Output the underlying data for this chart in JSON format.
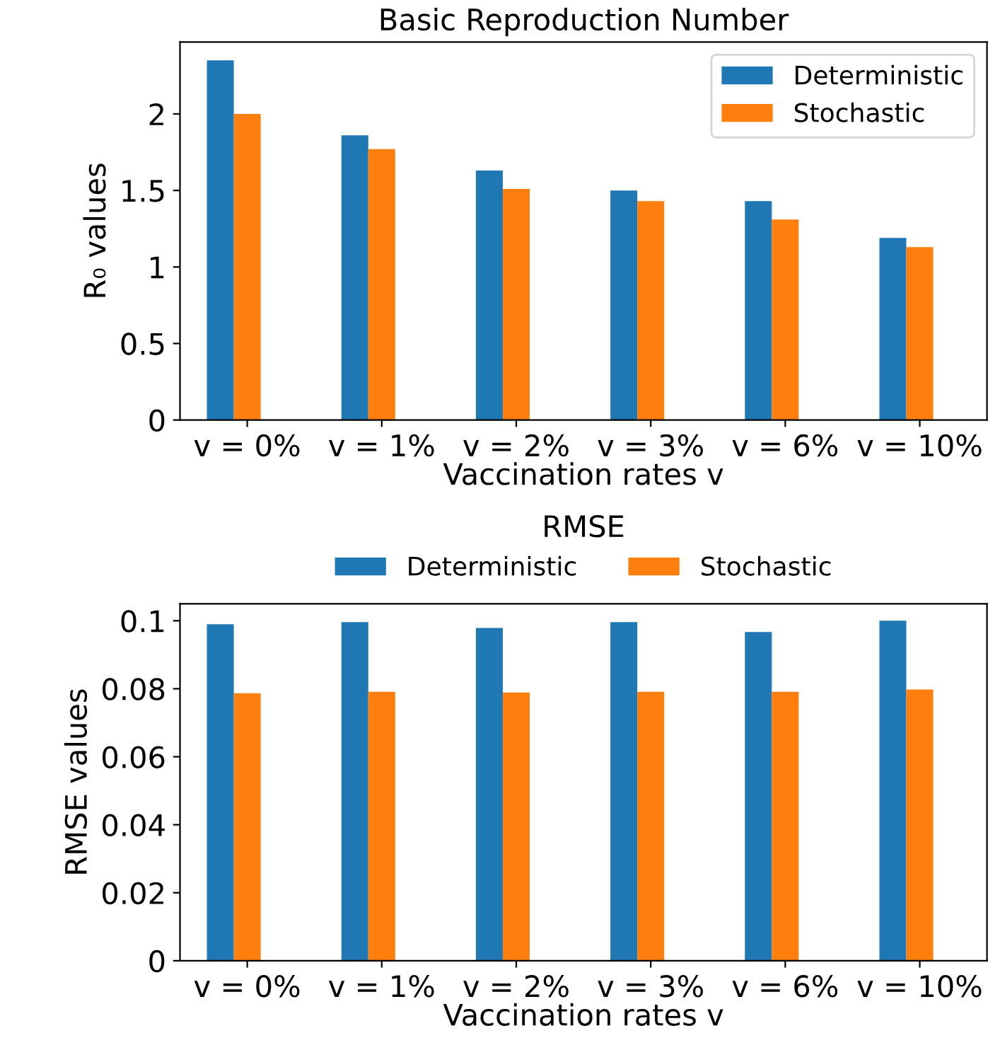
{
  "chart_data": [
    {
      "type": "bar",
      "title": "Basic Reproduction Number",
      "xlabel": "Vaccination rates v",
      "ylabel": "R₀ values",
      "categories": [
        "v = 0%",
        "v = 1%",
        "v = 2%",
        "v = 3%",
        "v = 6%",
        "v = 10%"
      ],
      "series": [
        {
          "name": "Deterministic",
          "color": "#1f77b4",
          "values": [
            2.35,
            1.86,
            1.63,
            1.5,
            1.43,
            1.19
          ]
        },
        {
          "name": "Stochastic",
          "color": "#ff7f0e",
          "values": [
            2.0,
            1.77,
            1.51,
            1.43,
            1.31,
            1.13
          ]
        }
      ],
      "ylim": [
        0,
        2.47
      ],
      "yticks": [
        0,
        0.5,
        1,
        1.5,
        2
      ],
      "legend": "top right",
      "grid": false
    },
    {
      "type": "bar",
      "title": "RMSE",
      "xlabel": "Vaccination rates v",
      "ylabel": "RMSE values",
      "categories": [
        "v = 0%",
        "v = 1%",
        "v = 2%",
        "v = 3%",
        "v = 6%",
        "v = 10%"
      ],
      "series": [
        {
          "name": "Deterministic",
          "color": "#1f77b4",
          "values": [
            0.099,
            0.0996,
            0.0979,
            0.0996,
            0.0967,
            0.1
          ]
        },
        {
          "name": "Stochastic",
          "color": "#ff7f0e",
          "values": [
            0.0787,
            0.0791,
            0.0789,
            0.0791,
            0.0791,
            0.0798
          ]
        }
      ],
      "ylim": [
        0,
        0.105
      ],
      "yticks": [
        0,
        0.02,
        0.04,
        0.06,
        0.08,
        0.1
      ],
      "legend": "top",
      "grid": false
    }
  ]
}
